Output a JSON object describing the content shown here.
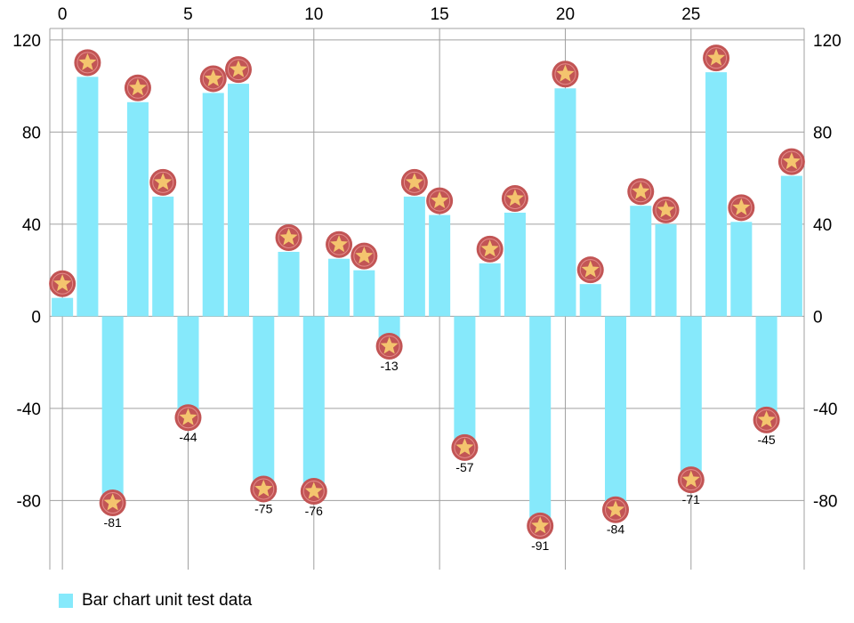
{
  "chart_data": {
    "type": "bar",
    "x": [
      0,
      1,
      2,
      3,
      4,
      5,
      6,
      7,
      8,
      9,
      10,
      11,
      12,
      13,
      14,
      15,
      16,
      17,
      18,
      19,
      20,
      21,
      22,
      23,
      24,
      25,
      26,
      27,
      28,
      29
    ],
    "values": [
      8,
      104,
      -81,
      93,
      52,
      -44,
      97,
      101,
      -75,
      28,
      -76,
      25,
      20,
      -13,
      52,
      44,
      -57,
      23,
      45,
      -91,
      99,
      14,
      -84,
      48,
      40,
      -71,
      106,
      41,
      -45,
      61
    ],
    "series": [
      {
        "name": "Bar chart unit test data",
        "values": [
          8,
          104,
          -81,
          93,
          52,
          -44,
          97,
          101,
          -75,
          28,
          -76,
          25,
          20,
          -13,
          52,
          44,
          -57,
          23,
          45,
          -91,
          99,
          14,
          -84,
          48,
          40,
          -71,
          106,
          41,
          -45,
          61
        ]
      }
    ],
    "x_ticks": [
      0,
      5,
      10,
      15,
      20,
      25
    ],
    "y_ticks": [
      -80,
      -40,
      0,
      40,
      80,
      120
    ],
    "xlim": [
      -0.5,
      29.5
    ],
    "ylim": [
      -110,
      125
    ],
    "y_axis_left": true,
    "y_axis_right": true,
    "x_axis_position": "top",
    "grid": true,
    "legend_position": "bottom-left",
    "point_marker": "star-icon",
    "colors": {
      "bar": "#86E9FB",
      "grid": "#A0A0A0",
      "marker_ring": "#C25555",
      "marker_star": "#F4C46E"
    }
  }
}
